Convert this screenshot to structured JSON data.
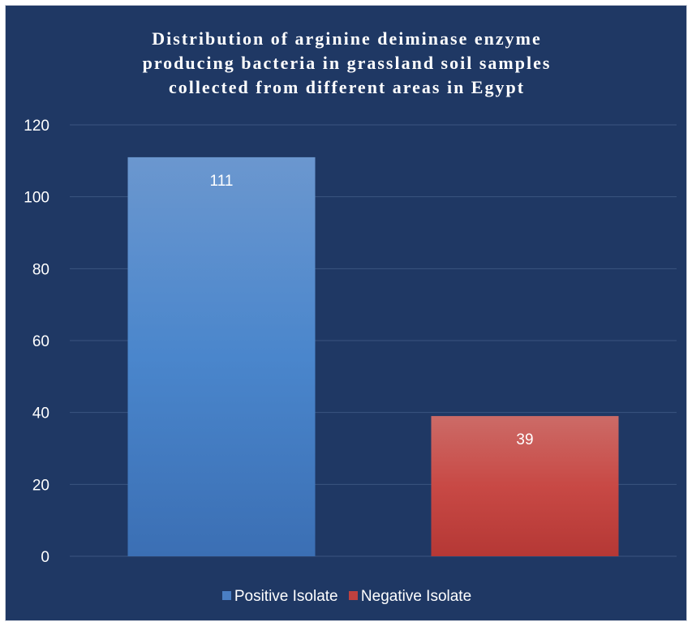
{
  "chart_data": {
    "type": "bar",
    "title_lines": [
      "Distribution of arginine deiminase enzyme",
      "producing bacteria in grassland soil samples",
      "collected from different areas in Egypt"
    ],
    "categories": [
      "Positive Isolate",
      "Negative Isolate"
    ],
    "values": [
      111,
      39
    ],
    "data_labels": [
      "111",
      "39"
    ],
    "colors": [
      "#4a7ec3",
      "#c0413f"
    ],
    "ylim": [
      0,
      120
    ],
    "yticks": [
      "0",
      "20",
      "40",
      "60",
      "80",
      "100",
      "120"
    ],
    "grid": true,
    "legend_position": "bottom",
    "legend": [
      {
        "label": "Positive Isolate",
        "color": "#4a7ec3"
      },
      {
        "label": "Negative Isolate",
        "color": "#c0413f"
      }
    ]
  }
}
